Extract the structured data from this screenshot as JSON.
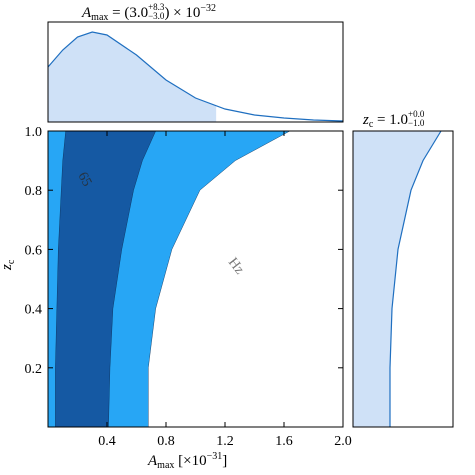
{
  "chart_data": [
    {
      "type": "contour",
      "xlabel": {
        "base": "A",
        "sub": "max",
        "unit": "[×10",
        "exp": "−31",
        "close": "]"
      },
      "ylabel": {
        "base": "z",
        "sub": "c"
      },
      "xlim": [
        0,
        2
      ],
      "ylim": [
        0,
        1
      ],
      "xticks": [
        0.4,
        0.8,
        1.2,
        {
          "value": 1.6,
          "label": "1.6"
        },
        {
          "value": 2,
          "label": "2.0"
        }
      ],
      "yticks": [
        0.2,
        0.4,
        0.6,
        0.8,
        {
          "value": 1,
          "label": "1.0"
        }
      ],
      "z": [
        0,
        0.2,
        0.4,
        0.6,
        0.8,
        0.9,
        1
      ],
      "series": [
        {
          "color": "#27a6f5",
          "x_left": [
            0,
            0,
            0,
            0,
            0,
            0,
            0
          ],
          "x_right": [
            0.68,
            0.68,
            0.73,
            0.84,
            1.03,
            1.27,
            1.64
          ]
        },
        {
          "color": "#1559a3",
          "x_left": [
            0.05,
            0.05,
            0.06,
            0.07,
            0.09,
            0.1,
            0.12
          ],
          "x_right": [
            0.41,
            0.42,
            0.44,
            0.5,
            0.58,
            0.64,
            0.73
          ]
        }
      ],
      "watermark": [
        "65",
        "Hz"
      ]
    },
    {
      "type": "density",
      "title": {
        "base": "A",
        "sub": "max",
        "open": " = (3.0",
        "plus": "+8.3",
        "minus": "−3.0",
        "unit": ") × 10",
        "exp": "−32"
      },
      "x": [
        0,
        0.1,
        0.2,
        0.3,
        0.4,
        0.6,
        0.8,
        1,
        1.2,
        1.4,
        1.6,
        1.8,
        2
      ],
      "values": [
        0.55,
        0.72,
        0.85,
        0.9,
        0.87,
        0.67,
        0.42,
        0.24,
        0.13,
        0.07,
        0.04,
        0.02,
        0.01
      ],
      "xlim": [
        0,
        2
      ],
      "ylim": [
        0,
        1
      ],
      "shade_to": 1.14,
      "color": "#1f6fc0",
      "fill": "#cfe1f7"
    },
    {
      "type": "density-vertical",
      "title": {
        "base": "z",
        "sub": "c",
        "open": " = 1.0",
        "plus": "+0.0",
        "minus": "−1.0"
      },
      "z": [
        0,
        0.2,
        0.4,
        0.6,
        0.8,
        0.9,
        1
      ],
      "values": [
        0.37,
        0.37,
        0.39,
        0.45,
        0.58,
        0.7,
        0.88
      ],
      "xlim": [
        0,
        1
      ],
      "ylim": [
        0,
        1
      ],
      "color": "#1f6fc0",
      "fill": "#cfe1f7"
    }
  ]
}
